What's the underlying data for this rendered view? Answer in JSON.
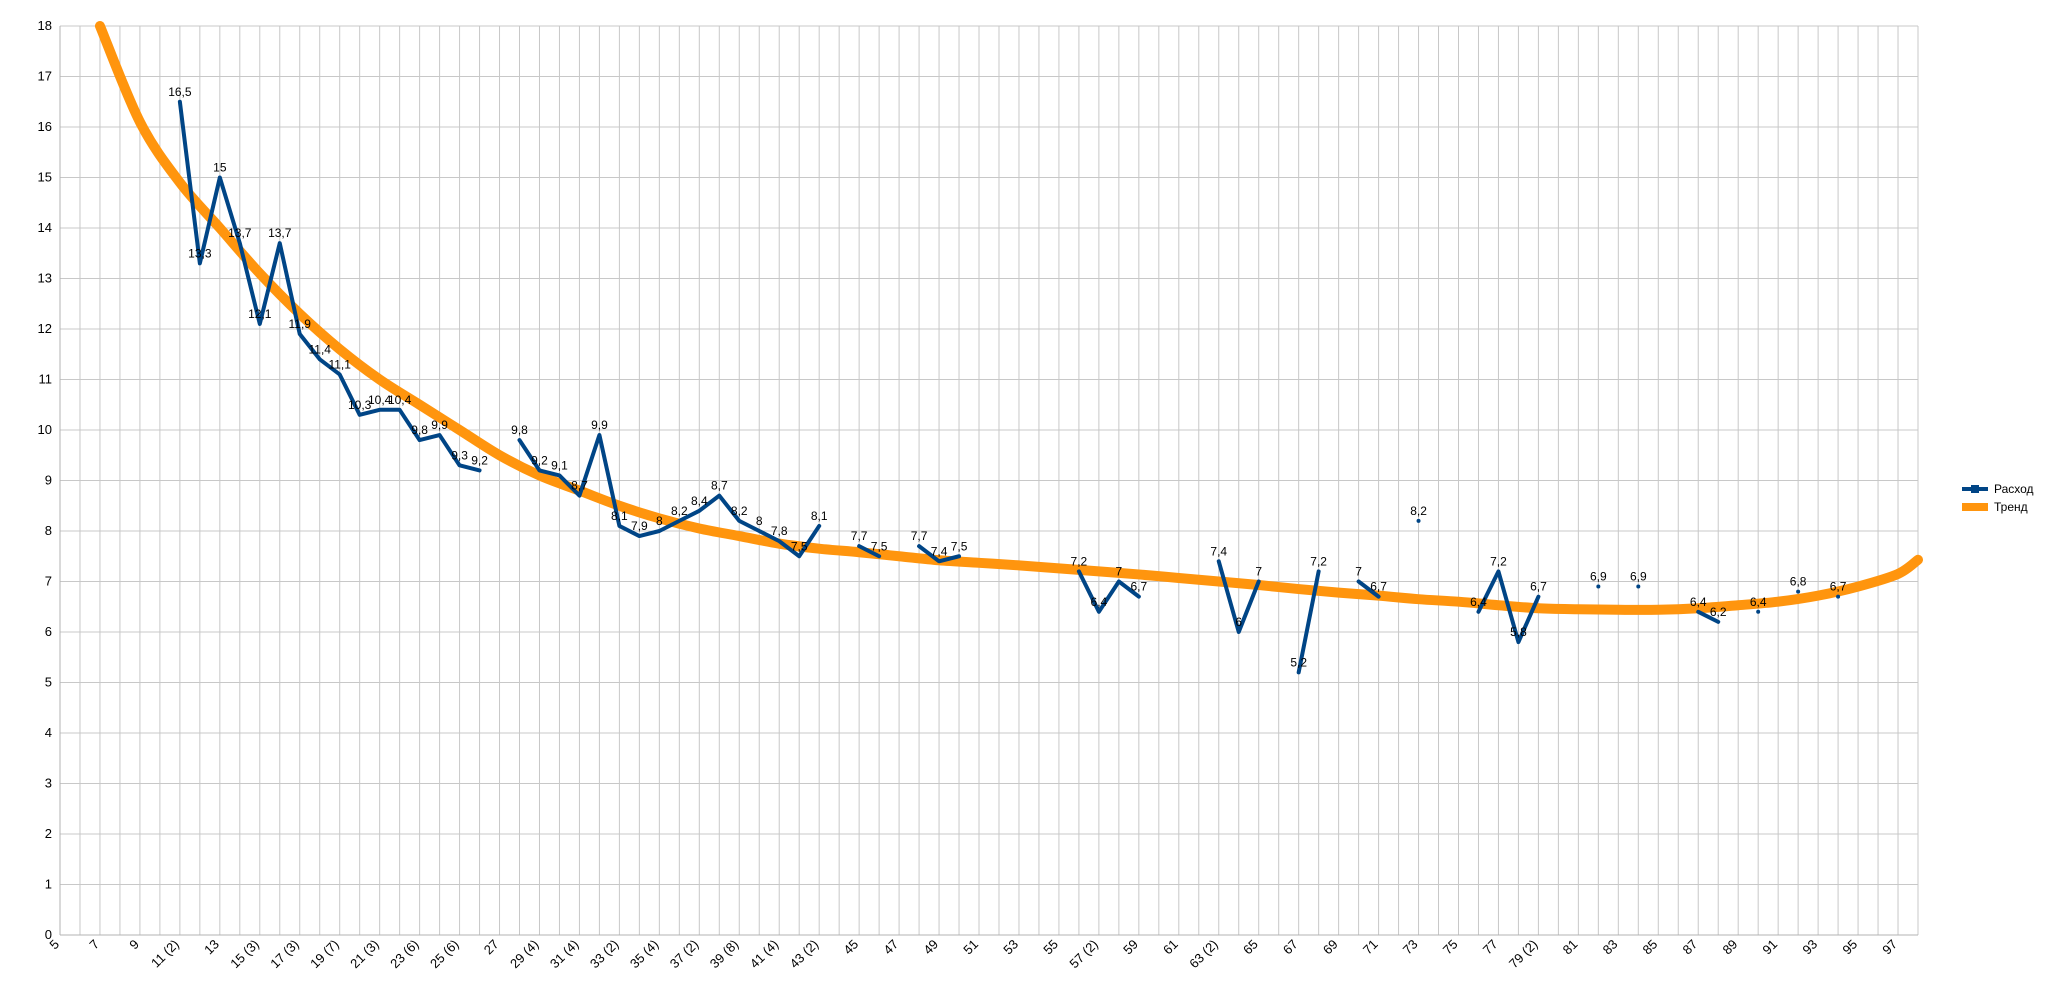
{
  "chart_data": {
    "type": "line",
    "title": "",
    "xlabel": "",
    "ylabel": "",
    "ylim": [
      0,
      18
    ],
    "yticks": [
      0,
      1,
      2,
      3,
      4,
      5,
      6,
      7,
      8,
      9,
      10,
      11,
      12,
      13,
      14,
      15,
      16,
      17,
      18
    ],
    "xlim": [
      5,
      98
    ],
    "grid": true,
    "legend_position": "right",
    "x_tick_labels": [
      {
        "x": 5,
        "label": "5"
      },
      {
        "x": 7,
        "label": "7"
      },
      {
        "x": 9,
        "label": "9"
      },
      {
        "x": 11,
        "label": "11 (2)"
      },
      {
        "x": 13,
        "label": "13"
      },
      {
        "x": 15,
        "label": "15 (3)"
      },
      {
        "x": 17,
        "label": "17 (3)"
      },
      {
        "x": 19,
        "label": "19 (7)"
      },
      {
        "x": 21,
        "label": "21 (3)"
      },
      {
        "x": 23,
        "label": "23 (6)"
      },
      {
        "x": 25,
        "label": "25 (6)"
      },
      {
        "x": 27,
        "label": "27"
      },
      {
        "x": 29,
        "label": "29 (4)"
      },
      {
        "x": 31,
        "label": "31 (4)"
      },
      {
        "x": 33,
        "label": "33 (2)"
      },
      {
        "x": 35,
        "label": "35 (4)"
      },
      {
        "x": 37,
        "label": "37 (2)"
      },
      {
        "x": 39,
        "label": "39 (8)"
      },
      {
        "x": 41,
        "label": "41 (4)"
      },
      {
        "x": 43,
        "label": "43 (2)"
      },
      {
        "x": 45,
        "label": "45"
      },
      {
        "x": 47,
        "label": "47"
      },
      {
        "x": 49,
        "label": "49"
      },
      {
        "x": 51,
        "label": "51"
      },
      {
        "x": 53,
        "label": "53"
      },
      {
        "x": 55,
        "label": "55"
      },
      {
        "x": 57,
        "label": "57 (2)"
      },
      {
        "x": 59,
        "label": "59"
      },
      {
        "x": 61,
        "label": "61"
      },
      {
        "x": 63,
        "label": "63 (2)"
      },
      {
        "x": 65,
        "label": "65"
      },
      {
        "x": 67,
        "label": "67"
      },
      {
        "x": 69,
        "label": "69"
      },
      {
        "x": 71,
        "label": "71"
      },
      {
        "x": 73,
        "label": "73"
      },
      {
        "x": 75,
        "label": "75"
      },
      {
        "x": 77,
        "label": "77"
      },
      {
        "x": 79,
        "label": "79 (2)"
      },
      {
        "x": 81,
        "label": "81"
      },
      {
        "x": 83,
        "label": "83"
      },
      {
        "x": 85,
        "label": "85"
      },
      {
        "x": 87,
        "label": "87"
      },
      {
        "x": 89,
        "label": "89"
      },
      {
        "x": 91,
        "label": "91"
      },
      {
        "x": 93,
        "label": "93"
      },
      {
        "x": 95,
        "label": "95"
      },
      {
        "x": 97,
        "label": "97"
      }
    ],
    "series": [
      {
        "name": "Расход",
        "color": "#004586",
        "segments": [
          [
            [
              11,
              16.5
            ],
            [
              12,
              13.3
            ],
            [
              13,
              15
            ],
            [
              14,
              13.7
            ],
            [
              15,
              12.1
            ],
            [
              16,
              13.7
            ],
            [
              17,
              11.9
            ],
            [
              18,
              11.4
            ],
            [
              19,
              11.1
            ],
            [
              20,
              10.3
            ],
            [
              21,
              10.4
            ],
            [
              22,
              10.4
            ],
            [
              23,
              9.8
            ],
            [
              24,
              9.9
            ],
            [
              25,
              9.3
            ],
            [
              26,
              9.2
            ]
          ],
          [
            [
              28,
              9.8
            ],
            [
              29,
              9.2
            ],
            [
              30,
              9.1
            ],
            [
              31,
              8.7
            ],
            [
              32,
              9.9
            ],
            [
              33,
              8.1
            ],
            [
              34,
              7.9
            ],
            [
              35,
              8
            ],
            [
              36,
              8.2
            ],
            [
              37,
              8.4
            ],
            [
              38,
              8.7
            ],
            [
              39,
              8.2
            ],
            [
              40,
              8
            ],
            [
              41,
              7.8
            ],
            [
              42,
              7.5
            ],
            [
              43,
              8.1
            ]
          ],
          [
            [
              45,
              7.7
            ],
            [
              46,
              7.5
            ]
          ],
          [
            [
              48,
              7.7
            ],
            [
              49,
              7.4
            ],
            [
              50,
              7.5
            ]
          ],
          [
            [
              56,
              7.2
            ],
            [
              57,
              6.4
            ],
            [
              58,
              7
            ],
            [
              59,
              6.7
            ]
          ],
          [
            [
              63,
              7.4
            ],
            [
              64,
              6
            ],
            [
              65,
              7
            ]
          ],
          [
            [
              67,
              5.2
            ],
            [
              68,
              7.2
            ]
          ],
          [
            [
              70,
              7
            ],
            [
              71,
              6.7
            ]
          ],
          [
            [
              73,
              8.2
            ]
          ],
          [
            [
              76,
              6.4
            ],
            [
              77,
              7.2
            ],
            [
              78,
              5.8
            ],
            [
              79,
              6.7
            ]
          ],
          [
            [
              82,
              6.9
            ]
          ],
          [
            [
              84,
              6.9
            ]
          ],
          [
            [
              87,
              6.4
            ],
            [
              88,
              6.2
            ]
          ],
          [
            [
              90,
              6.4
            ]
          ],
          [
            [
              92,
              6.8
            ]
          ],
          [
            [
              94,
              6.7
            ]
          ]
        ],
        "labels": [
          [
            11,
            16.5,
            "16,5"
          ],
          [
            12,
            13.3,
            "13,3"
          ],
          [
            13,
            15,
            "15"
          ],
          [
            14,
            13.7,
            "13,7"
          ],
          [
            15,
            12.1,
            "12,1"
          ],
          [
            16,
            13.7,
            "13,7"
          ],
          [
            17,
            11.9,
            "11,9"
          ],
          [
            18,
            11.4,
            "11,4"
          ],
          [
            19,
            11.1,
            "11,1"
          ],
          [
            20,
            10.3,
            "10,3"
          ],
          [
            21,
            10.4,
            "10,4"
          ],
          [
            22,
            10.4,
            "10,4"
          ],
          [
            23,
            9.8,
            "9,8"
          ],
          [
            24,
            9.9,
            "9,9"
          ],
          [
            25,
            9.3,
            "9,3"
          ],
          [
            26,
            9.2,
            "9,2"
          ],
          [
            28,
            9.8,
            "9,8"
          ],
          [
            29,
            9.2,
            "9,2"
          ],
          [
            30,
            9.1,
            "9,1"
          ],
          [
            31,
            8.7,
            "8,7"
          ],
          [
            32,
            9.9,
            "9,9"
          ],
          [
            33,
            8.1,
            "8,1"
          ],
          [
            34,
            7.9,
            "7,9"
          ],
          [
            35,
            8,
            "8"
          ],
          [
            36,
            8.2,
            "8,2"
          ],
          [
            37,
            8.4,
            "8,4"
          ],
          [
            38,
            8.7,
            "8,7"
          ],
          [
            39,
            8.2,
            "8,2"
          ],
          [
            40,
            8,
            "8"
          ],
          [
            41,
            7.8,
            "7,8"
          ],
          [
            42,
            7.5,
            "7,5"
          ],
          [
            43,
            8.1,
            "8,1"
          ],
          [
            45,
            7.7,
            "7,7"
          ],
          [
            46,
            7.5,
            "7,5"
          ],
          [
            48,
            7.7,
            "7,7"
          ],
          [
            49,
            7.4,
            "7,4"
          ],
          [
            50,
            7.5,
            "7,5"
          ],
          [
            56,
            7.2,
            "7,2"
          ],
          [
            57,
            6.4,
            "6,4"
          ],
          [
            58,
            7,
            "7"
          ],
          [
            59,
            6.7,
            "6,7"
          ],
          [
            63,
            7.4,
            "7,4"
          ],
          [
            64,
            6,
            "6"
          ],
          [
            65,
            7,
            "7"
          ],
          [
            67,
            5.2,
            "5,2"
          ],
          [
            68,
            7.2,
            "7,2"
          ],
          [
            70,
            7,
            "7"
          ],
          [
            71,
            6.7,
            "6,7"
          ],
          [
            73,
            8.2,
            "8,2"
          ],
          [
            76,
            6.4,
            "6,4"
          ],
          [
            77,
            7.2,
            "7,2"
          ],
          [
            78,
            5.8,
            "5,8"
          ],
          [
            79,
            6.7,
            "6,7"
          ],
          [
            82,
            6.9,
            "6,9"
          ],
          [
            84,
            6.9,
            "6,9"
          ],
          [
            87,
            6.4,
            "6,4"
          ],
          [
            88,
            6.2,
            "6,2"
          ],
          [
            90,
            6.4,
            "6,4"
          ],
          [
            92,
            6.8,
            "6,8"
          ],
          [
            94,
            6.7,
            "6,7"
          ]
        ]
      },
      {
        "name": "Тренд",
        "color": "#ff950e",
        "trend_points": [
          [
            7,
            18
          ],
          [
            9,
            16.1
          ],
          [
            11,
            14.9
          ],
          [
            13,
            14.0
          ],
          [
            15,
            13.1
          ],
          [
            17,
            12.3
          ],
          [
            19,
            11.6
          ],
          [
            21,
            11.0
          ],
          [
            23,
            10.5
          ],
          [
            25,
            10.0
          ],
          [
            27,
            9.5
          ],
          [
            29,
            9.1
          ],
          [
            31,
            8.8
          ],
          [
            33,
            8.5
          ],
          [
            35,
            8.25
          ],
          [
            37,
            8.05
          ],
          [
            39,
            7.9
          ],
          [
            41,
            7.75
          ],
          [
            43,
            7.65
          ],
          [
            45,
            7.58
          ],
          [
            47,
            7.5
          ],
          [
            49,
            7.42
          ],
          [
            51,
            7.37
          ],
          [
            53,
            7.32
          ],
          [
            55,
            7.26
          ],
          [
            57,
            7.2
          ],
          [
            59,
            7.14
          ],
          [
            61,
            7.07
          ],
          [
            63,
            7.0
          ],
          [
            65,
            6.93
          ],
          [
            67,
            6.85
          ],
          [
            69,
            6.78
          ],
          [
            71,
            6.72
          ],
          [
            73,
            6.65
          ],
          [
            75,
            6.6
          ],
          [
            77,
            6.53
          ],
          [
            79,
            6.47
          ],
          [
            81,
            6.45
          ],
          [
            83,
            6.44
          ],
          [
            85,
            6.44
          ],
          [
            87,
            6.47
          ],
          [
            89,
            6.53
          ],
          [
            91,
            6.6
          ],
          [
            93,
            6.72
          ],
          [
            95,
            6.9
          ],
          [
            97,
            7.15
          ],
          [
            98,
            7.43
          ]
        ]
      }
    ]
  },
  "legend": {
    "items": [
      {
        "label": "Расход",
        "color": "#004586"
      },
      {
        "label": "Тренд",
        "color": "#ff950e"
      }
    ]
  }
}
